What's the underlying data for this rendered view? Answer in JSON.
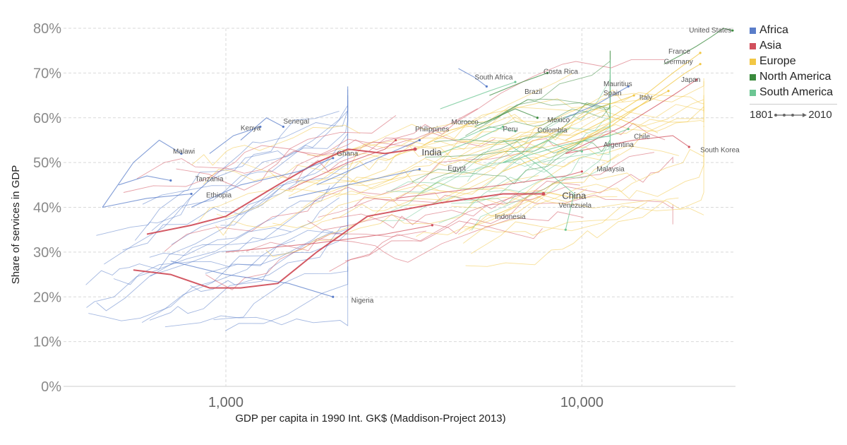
{
  "chart_data": {
    "type": "line",
    "xlabel": "GDP per capita in 1990 Int. GK$ (Maddison-Project 2013)",
    "ylabel": "Share of services in GDP",
    "x_scale": "log",
    "xlim": [
      350,
      27000
    ],
    "ylim": [
      0,
      80
    ],
    "x_ticks": [
      {
        "value": 1000,
        "label": "1,000"
      },
      {
        "value": 10000,
        "label": "10,000"
      }
    ],
    "y_ticks": [
      {
        "value": 0,
        "label": "0%"
      },
      {
        "value": 10,
        "label": "10%"
      },
      {
        "value": 20,
        "label": "20%"
      },
      {
        "value": 30,
        "label": "30%"
      },
      {
        "value": 40,
        "label": "40%"
      },
      {
        "value": 50,
        "label": "50%"
      },
      {
        "value": 60,
        "label": "60%"
      },
      {
        "value": 70,
        "label": "70%"
      },
      {
        "value": 80,
        "label": "80%"
      }
    ],
    "grid": true,
    "legend_position": "right",
    "time_range": {
      "start": "1801",
      "end": "2010"
    },
    "regions": [
      {
        "name": "Africa",
        "color": "#5a7dc9"
      },
      {
        "name": "Asia",
        "color": "#d1505c"
      },
      {
        "name": "Europe",
        "color": "#f2c744"
      },
      {
        "name": "North America",
        "color": "#3a8a3d"
      },
      {
        "name": "South America",
        "color": "#6cc693"
      }
    ],
    "series": [
      {
        "name": "United States",
        "region": "North America",
        "highlight": false,
        "points": [
          [
            17000,
            72
          ],
          [
            19000,
            74
          ],
          [
            21000,
            76
          ],
          [
            23000,
            78
          ],
          [
            25000,
            80
          ],
          [
            26500,
            79.5
          ]
        ]
      },
      {
        "name": "France",
        "region": "Europe",
        "highlight": false,
        "points": [
          [
            9000,
            55
          ],
          [
            12000,
            60
          ],
          [
            15000,
            65
          ],
          [
            18000,
            70
          ],
          [
            21500,
            74.5
          ]
        ]
      },
      {
        "name": "Germany",
        "region": "Europe",
        "highlight": false,
        "points": [
          [
            8500,
            52
          ],
          [
            12000,
            58
          ],
          [
            16000,
            65
          ],
          [
            19500,
            70
          ],
          [
            21500,
            72
          ]
        ]
      },
      {
        "name": "Japan",
        "region": "Asia",
        "highlight": false,
        "points": [
          [
            9000,
            52
          ],
          [
            13000,
            58
          ],
          [
            18000,
            65
          ],
          [
            21000,
            68.5
          ]
        ]
      },
      {
        "name": "Mauritius",
        "region": "Africa",
        "highlight": false,
        "points": [
          [
            9000,
            60
          ],
          [
            11000,
            63
          ],
          [
            13500,
            67
          ]
        ]
      },
      {
        "name": "Spain",
        "region": "Europe",
        "highlight": false,
        "points": [
          [
            5000,
            50
          ],
          [
            8000,
            56
          ],
          [
            11000,
            62
          ],
          [
            14000,
            65
          ]
        ]
      },
      {
        "name": "Italy",
        "region": "Europe",
        "highlight": false,
        "points": [
          [
            6000,
            48
          ],
          [
            10000,
            55
          ],
          [
            14000,
            62
          ],
          [
            17500,
            66
          ]
        ]
      },
      {
        "name": "Chile",
        "region": "South America",
        "highlight": false,
        "points": [
          [
            6000,
            50
          ],
          [
            9000,
            54
          ],
          [
            12000,
            56
          ],
          [
            13500,
            57.5
          ]
        ]
      },
      {
        "name": "South Korea",
        "region": "Asia",
        "highlight": false,
        "points": [
          [
            9000,
            52
          ],
          [
            14000,
            55
          ],
          [
            18000,
            56
          ],
          [
            20000,
            53.5
          ]
        ]
      },
      {
        "name": "Argentina",
        "region": "South America",
        "highlight": false,
        "points": [
          [
            6000,
            50
          ],
          [
            8000,
            55
          ],
          [
            9000,
            53
          ],
          [
            10000,
            52.5
          ]
        ]
      },
      {
        "name": "Malaysia",
        "region": "Asia",
        "highlight": false,
        "points": [
          [
            3000,
            42
          ],
          [
            6000,
            45
          ],
          [
            9000,
            47
          ],
          [
            10000,
            48
          ]
        ]
      },
      {
        "name": "Mexico",
        "region": "North America",
        "highlight": false,
        "points": [
          [
            5000,
            58
          ],
          [
            6500,
            62
          ],
          [
            7500,
            60
          ]
        ]
      },
      {
        "name": "Colombia",
        "region": "South America",
        "highlight": false,
        "points": [
          [
            4500,
            55
          ],
          [
            5500,
            58
          ],
          [
            6500,
            57
          ]
        ]
      },
      {
        "name": "Brazil",
        "region": "South America",
        "highlight": false,
        "points": [
          [
            4000,
            62
          ],
          [
            5500,
            66
          ],
          [
            6500,
            68
          ]
        ]
      },
      {
        "name": "Costa Rica",
        "region": "North America",
        "highlight": false,
        "points": [
          [
            5500,
            65
          ],
          [
            6800,
            68
          ],
          [
            8000,
            70
          ]
        ]
      },
      {
        "name": "South Africa",
        "region": "Africa",
        "highlight": false,
        "points": [
          [
            4500,
            71
          ],
          [
            5000,
            69
          ],
          [
            5400,
            67
          ]
        ]
      },
      {
        "name": "Peru",
        "region": "South America",
        "highlight": false,
        "points": [
          [
            4000,
            52
          ],
          [
            5000,
            55
          ],
          [
            6000,
            58
          ]
        ]
      },
      {
        "name": "Venezuela",
        "region": "South America",
        "highlight": false,
        "points": [
          [
            6000,
            55
          ],
          [
            8000,
            48
          ],
          [
            9500,
            43
          ],
          [
            9000,
            35
          ]
        ]
      },
      {
        "name": "Morocco",
        "region": "Africa",
        "highlight": false,
        "points": [
          [
            1800,
            45
          ],
          [
            2500,
            50
          ],
          [
            3500,
            55
          ]
        ]
      },
      {
        "name": "Egypt",
        "region": "Africa",
        "highlight": false,
        "points": [
          [
            1500,
            42
          ],
          [
            2500,
            46
          ],
          [
            3500,
            48.5
          ]
        ]
      },
      {
        "name": "Philippines",
        "region": "Asia",
        "highlight": false,
        "points": [
          [
            1500,
            44
          ],
          [
            2200,
            50
          ],
          [
            2800,
            53
          ],
          [
            3000,
            55
          ]
        ]
      },
      {
        "name": "India",
        "region": "Asia",
        "highlight": true,
        "points": [
          [
            600,
            34
          ],
          [
            800,
            36
          ],
          [
            1000,
            38
          ],
          [
            1400,
            45
          ],
          [
            1800,
            50
          ],
          [
            2200,
            53
          ],
          [
            2800,
            52
          ],
          [
            3400,
            53
          ]
        ]
      },
      {
        "name": "China",
        "region": "Asia",
        "highlight": true,
        "points": [
          [
            550,
            26
          ],
          [
            700,
            25
          ],
          [
            900,
            22
          ],
          [
            1100,
            22
          ],
          [
            1400,
            23
          ],
          [
            1800,
            30
          ],
          [
            2500,
            38
          ],
          [
            4000,
            41
          ],
          [
            6000,
            43
          ],
          [
            7800,
            43
          ]
        ]
      },
      {
        "name": "Indonesia",
        "region": "Asia",
        "highlight": false,
        "points": [
          [
            1000,
            30
          ],
          [
            1800,
            32
          ],
          [
            2800,
            34
          ],
          [
            3800,
            36
          ]
        ]
      },
      {
        "name": "Ghana",
        "region": "Africa",
        "highlight": false,
        "points": [
          [
            800,
            40
          ],
          [
            1100,
            45
          ],
          [
            1600,
            48
          ],
          [
            2000,
            51
          ]
        ]
      },
      {
        "name": "Senegal",
        "region": "Africa",
        "highlight": false,
        "points": [
          [
            1100,
            55
          ],
          [
            1300,
            60
          ],
          [
            1450,
            58
          ]
        ]
      },
      {
        "name": "Kenya",
        "region": "Africa",
        "highlight": false,
        "points": [
          [
            900,
            52
          ],
          [
            1050,
            56
          ],
          [
            1250,
            58
          ]
        ]
      },
      {
        "name": "Malawi",
        "region": "Africa",
        "highlight": false,
        "points": [
          [
            450,
            40
          ],
          [
            550,
            50
          ],
          [
            650,
            55
          ],
          [
            750,
            52
          ]
        ]
      },
      {
        "name": "Tanzania",
        "region": "Africa",
        "highlight": false,
        "points": [
          [
            500,
            45
          ],
          [
            600,
            47
          ],
          [
            700,
            46
          ]
        ]
      },
      {
        "name": "Ethiopia",
        "region": "Africa",
        "highlight": false,
        "points": [
          [
            450,
            40
          ],
          [
            600,
            42
          ],
          [
            800,
            43
          ]
        ]
      },
      {
        "name": "Nigeria",
        "region": "Africa",
        "highlight": false,
        "points": [
          [
            700,
            28
          ],
          [
            1000,
            25
          ],
          [
            1500,
            23
          ],
          [
            2000,
            20
          ]
        ]
      }
    ],
    "labels": [
      {
        "text": "United States",
        "x": 20000,
        "y": 79.5,
        "highlight": false
      },
      {
        "text": "France",
        "x": 17500,
        "y": 74.8,
        "highlight": false
      },
      {
        "text": "Germany",
        "x": 17000,
        "y": 72.5,
        "highlight": false
      },
      {
        "text": "Mauritius",
        "x": 11500,
        "y": 67.5,
        "highlight": false
      },
      {
        "text": "Japan",
        "x": 19000,
        "y": 68.5,
        "highlight": false
      },
      {
        "text": "Spain",
        "x": 11500,
        "y": 65.5,
        "highlight": false
      },
      {
        "text": "Italy",
        "x": 14500,
        "y": 64.5,
        "highlight": false
      },
      {
        "text": "South Africa",
        "x": 5000,
        "y": 69,
        "highlight": false
      },
      {
        "text": "Costa Rica",
        "x": 7800,
        "y": 70.3,
        "highlight": false
      },
      {
        "text": "Brazil",
        "x": 6900,
        "y": 65.8,
        "highlight": false
      },
      {
        "text": "Senegal",
        "x": 1450,
        "y": 59.2,
        "highlight": false
      },
      {
        "text": "Kenya",
        "x": 1100,
        "y": 57.7,
        "highlight": false
      },
      {
        "text": "Mexico",
        "x": 8000,
        "y": 59.5,
        "highlight": false
      },
      {
        "text": "Morocco",
        "x": 4300,
        "y": 59,
        "highlight": false
      },
      {
        "text": "Philippines",
        "x": 3400,
        "y": 57.4,
        "highlight": false
      },
      {
        "text": "Peru",
        "x": 6000,
        "y": 57.4,
        "highlight": false
      },
      {
        "text": "Colombia",
        "x": 7500,
        "y": 57.2,
        "highlight": false
      },
      {
        "text": "Chile",
        "x": 14000,
        "y": 55.8,
        "highlight": false
      },
      {
        "text": "Argentina",
        "x": 11500,
        "y": 54,
        "highlight": false
      },
      {
        "text": "Malawi",
        "x": 710,
        "y": 52.5,
        "highlight": false
      },
      {
        "text": "South Korea",
        "x": 21500,
        "y": 52.8,
        "highlight": false
      },
      {
        "text": "Ghana",
        "x": 2050,
        "y": 52,
        "highlight": false
      },
      {
        "text": "India",
        "x": 3550,
        "y": 52.1,
        "highlight": true
      },
      {
        "text": "Egypt",
        "x": 4200,
        "y": 48.7,
        "highlight": false
      },
      {
        "text": "Malaysia",
        "x": 11000,
        "y": 48.5,
        "highlight": false
      },
      {
        "text": "Tanzania",
        "x": 820,
        "y": 46.3,
        "highlight": false
      },
      {
        "text": "Ethiopia",
        "x": 880,
        "y": 42.7,
        "highlight": false
      },
      {
        "text": "China",
        "x": 8800,
        "y": 42.4,
        "highlight": true
      },
      {
        "text": "Venezuela",
        "x": 8600,
        "y": 40.4,
        "highlight": false
      },
      {
        "text": "Indonesia",
        "x": 5700,
        "y": 37.9,
        "highlight": false
      },
      {
        "text": "Nigeria",
        "x": 2250,
        "y": 19.2,
        "highlight": false
      }
    ]
  }
}
